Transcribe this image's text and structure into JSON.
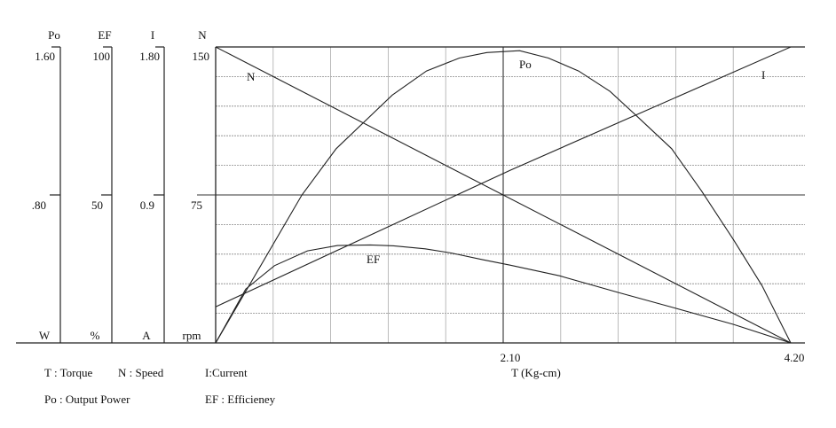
{
  "chart_data": {
    "type": "line",
    "xlabel": "T (Kg-cm)",
    "xlim": [
      0,
      4.3
    ],
    "x_ticks": [
      "2.10",
      "4.20"
    ],
    "x_tick_values": [
      2.1,
      4.2
    ],
    "grid": true,
    "axes": [
      {
        "key": "Po",
        "label": "Po",
        "unit": "W",
        "max": 1.6,
        "ticks": [
          "1.60",
          ".80"
        ]
      },
      {
        "key": "EF",
        "label": "EF",
        "unit": "%",
        "max": 100,
        "ticks": [
          "100",
          "50"
        ]
      },
      {
        "key": "I",
        "label": "I",
        "unit": "A",
        "max": 1.8,
        "ticks": [
          "1.80",
          "0.9"
        ]
      },
      {
        "key": "N",
        "label": "N",
        "unit": "rpm",
        "max": 150,
        "ticks": [
          "150",
          "75"
        ]
      }
    ],
    "series": [
      {
        "name": "N",
        "axis": "N",
        "x": [
          0,
          4.2
        ],
        "y": [
          150,
          0
        ]
      },
      {
        "name": "I",
        "axis": "I",
        "x": [
          0,
          2.15,
          4.2
        ],
        "y": [
          0.22,
          1.05,
          1.8
        ]
      },
      {
        "name": "Po",
        "axis": "Po",
        "x": [
          0,
          0.63,
          0.88,
          1.29,
          1.54,
          1.78,
          1.98,
          2.22,
          2.43,
          2.65,
          2.88,
          3.07,
          3.33,
          3.55,
          3.78,
          3.99,
          4.2
        ],
        "y": [
          0,
          0.8,
          1.05,
          1.34,
          1.47,
          1.54,
          1.57,
          1.58,
          1.54,
          1.47,
          1.36,
          1.23,
          1.05,
          0.82,
          0.56,
          0.31,
          0
        ]
      },
      {
        "name": "EF",
        "axis": "EF",
        "x": [
          0,
          0.22,
          0.43,
          0.67,
          0.89,
          1.13,
          1.3,
          1.53,
          1.72,
          1.95,
          2.15,
          2.51,
          2.93,
          3.36,
          3.78,
          4.2
        ],
        "y": [
          0,
          18.2,
          26.1,
          31.1,
          32.9,
          33.1,
          32.8,
          31.8,
          30.4,
          28.1,
          26.3,
          22.7,
          17.2,
          11.7,
          6.3,
          0
        ]
      }
    ],
    "legend": [
      "T : Torque",
      "N : Speed",
      "I:Current",
      "Po : Output Power",
      "EF : Efficieney"
    ]
  }
}
